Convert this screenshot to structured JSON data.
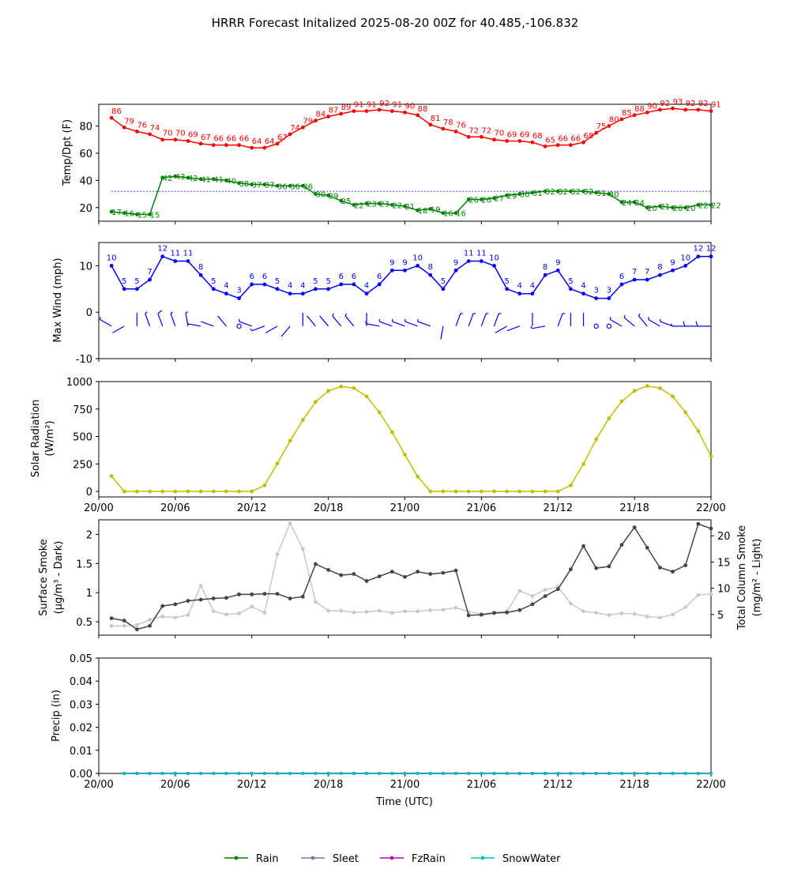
{
  "title": "HRRR Forecast Initalized 2025-08-20 00Z for 40.485,-106.832",
  "x_axis": {
    "label": "Time (UTC)",
    "ticks": [
      "20/00",
      "20/06",
      "20/12",
      "20/18",
      "21/00",
      "21/06",
      "21/12",
      "21/18",
      "22/00"
    ],
    "tick_hours": [
      0,
      6,
      12,
      18,
      24,
      30,
      36,
      42,
      48
    ],
    "range_hours": [
      0,
      48
    ]
  },
  "colors": {
    "temp": "#ff0000",
    "dewpoint": "#008000",
    "freezing_line": "#0000ff",
    "wind": "#0000ff",
    "solar": "#bfbf00",
    "smoke_dark": "#444444",
    "smoke_light": "#c8c8c8",
    "rain": "#008000",
    "sleet": "#8c6ea0",
    "fzrain": "#c000c0",
    "snowwater": "#00bfbf"
  },
  "chart_data": [
    {
      "type": "line",
      "panel": "temperature",
      "ylabel": "Temp/Dpt (F)",
      "ylim": [
        10,
        96
      ],
      "yticks": [
        20,
        40,
        60,
        80
      ],
      "reference_line": 32,
      "x": [
        1,
        2,
        3,
        4,
        5,
        6,
        7,
        8,
        9,
        10,
        11,
        12,
        13,
        14,
        15,
        16,
        17,
        18,
        19,
        20,
        21,
        22,
        23,
        24,
        25,
        26,
        27,
        28,
        29,
        30,
        31,
        32,
        33,
        34,
        35,
        36,
        37,
        38,
        39,
        40,
        41,
        42,
        43,
        44,
        45,
        46,
        47,
        48
      ],
      "series": [
        {
          "key": "temp",
          "values": [
            86,
            79,
            76,
            74,
            70,
            70,
            69,
            67,
            66,
            66,
            66,
            64,
            64,
            67,
            74,
            79,
            84,
            87,
            89,
            91,
            91,
            92,
            91,
            90,
            88,
            81,
            78,
            76,
            72,
            72,
            70,
            69,
            69,
            68,
            65,
            66,
            66,
            68,
            75,
            80,
            85,
            88,
            90,
            92,
            93,
            92,
            92,
            91
          ]
        },
        {
          "key": "dewpoint",
          "values": [
            17,
            16,
            15,
            15,
            42,
            43,
            42,
            41,
            41,
            40,
            38,
            37,
            37,
            36,
            36,
            36,
            30,
            29,
            25,
            22,
            23,
            23,
            22,
            21,
            18,
            19,
            16,
            16,
            26,
            26,
            27,
            29,
            30,
            31,
            32,
            32,
            32,
            32,
            31,
            30,
            24,
            24,
            20,
            21,
            20,
            20,
            22,
            22
          ]
        }
      ]
    },
    {
      "type": "line",
      "panel": "wind",
      "ylabel": "Max Wind (mph)",
      "ylim": [
        -10,
        15
      ],
      "yticks": [
        -10,
        0,
        10
      ],
      "x": [
        1,
        2,
        3,
        4,
        5,
        6,
        7,
        8,
        9,
        10,
        11,
        12,
        13,
        14,
        15,
        16,
        17,
        18,
        19,
        20,
        21,
        22,
        23,
        24,
        25,
        26,
        27,
        28,
        29,
        30,
        31,
        32,
        33,
        34,
        35,
        36,
        37,
        38,
        39,
        40,
        41,
        42,
        43,
        44,
        45,
        46,
        47,
        48
      ],
      "series": [
        {
          "key": "wind",
          "values": [
            10,
            5,
            5,
            7,
            12,
            11,
            11,
            8,
            5,
            4,
            3,
            6,
            6,
            5,
            4,
            4,
            5,
            5,
            6,
            6,
            4,
            6,
            9,
            9,
            10,
            8,
            5,
            9,
            11,
            11,
            10,
            5,
            4,
            4,
            8,
            9,
            5,
            4,
            3,
            3,
            6,
            7,
            7,
            8,
            9,
            10,
            12,
            12
          ]
        }
      ],
      "barb_directions_deg": [
        300,
        240,
        0,
        340,
        340,
        340,
        350,
        280,
        290,
        320,
        250,
        290,
        250,
        240,
        220,
        0,
        320,
        320,
        320,
        320,
        0,
        280,
        290,
        290,
        290,
        290,
        190,
        20,
        20,
        20,
        20,
        240,
        250,
        0,
        260,
        20,
        0,
        0,
        0,
        320,
        300,
        310,
        320,
        300,
        290,
        270,
        270,
        270
      ]
    },
    {
      "type": "line",
      "panel": "solar",
      "ylabel": "Solar Radiation",
      "ylabel_unit": "(W/m²)",
      "ylim": [
        -50,
        1000
      ],
      "yticks": [
        0,
        250,
        500,
        750,
        1000
      ],
      "x": [
        1,
        2,
        3,
        4,
        5,
        6,
        7,
        8,
        9,
        10,
        11,
        12,
        13,
        14,
        15,
        16,
        17,
        18,
        19,
        20,
        21,
        22,
        23,
        24,
        25,
        26,
        27,
        28,
        29,
        30,
        31,
        32,
        33,
        34,
        35,
        36,
        37,
        38,
        39,
        40,
        41,
        42,
        43,
        44,
        45,
        46,
        47,
        48
      ],
      "series": [
        {
          "key": "solar",
          "values": [
            140,
            0,
            0,
            0,
            0,
            0,
            0,
            0,
            0,
            0,
            0,
            0,
            55,
            255,
            460,
            650,
            815,
            915,
            955,
            940,
            865,
            720,
            540,
            335,
            135,
            0,
            0,
            0,
            0,
            0,
            0,
            0,
            0,
            0,
            0,
            0,
            55,
            250,
            475,
            665,
            820,
            915,
            960,
            940,
            865,
            720,
            550,
            320
          ]
        }
      ]
    },
    {
      "type": "line",
      "panel": "smoke",
      "ylabel": "Surface Smoke",
      "ylabel_unit": "(μg/m³ - Dark)",
      "ylabel_right": "Total Column Smoke",
      "ylabel_right_unit": "(mg/m² - Light)",
      "ylim": [
        0.27,
        2.25
      ],
      "yticks": [
        0.5,
        1.0,
        1.5,
        2.0
      ],
      "ylim_right": [
        1.05,
        23.05
      ],
      "yticks_right": [
        5,
        10,
        15,
        20
      ],
      "x": [
        1,
        2,
        3,
        4,
        5,
        6,
        7,
        8,
        9,
        10,
        11,
        12,
        13,
        14,
        15,
        16,
        17,
        18,
        19,
        20,
        21,
        22,
        23,
        24,
        25,
        26,
        27,
        28,
        29,
        30,
        31,
        32,
        33,
        34,
        35,
        36,
        37,
        38,
        39,
        40,
        41,
        42,
        43,
        44,
        45,
        46,
        47,
        48
      ],
      "series": [
        {
          "key": "smoke_dark",
          "axis": "left",
          "values": [
            0.56,
            0.52,
            0.37,
            0.43,
            0.77,
            0.8,
            0.86,
            0.88,
            0.9,
            0.91,
            0.97,
            0.97,
            0.98,
            0.98,
            0.9,
            0.93,
            1.49,
            1.39,
            1.3,
            1.32,
            1.2,
            1.28,
            1.36,
            1.27,
            1.36,
            1.32,
            1.34,
            1.38,
            0.61,
            0.62,
            0.65,
            0.66,
            0.7,
            0.8,
            0.94,
            1.06,
            1.4,
            1.8,
            1.42,
            1.45,
            1.82,
            2.12,
            1.77,
            1.43,
            1.36,
            1.47,
            2.18,
            2.1
          ]
        },
        {
          "key": "smoke_light",
          "axis": "right",
          "values": [
            2.8,
            2.8,
            3.0,
            4.0,
            4.6,
            4.4,
            4.9,
            10.5,
            5.6,
            5.0,
            5.2,
            6.5,
            5.3,
            16.5,
            22.4,
            17.5,
            7.4,
            5.7,
            5.7,
            5.4,
            5.5,
            5.7,
            5.3,
            5.6,
            5.6,
            5.8,
            5.9,
            6.3,
            5.5,
            5.1,
            5.4,
            5.6,
            9.5,
            8.5,
            9.7,
            10.3,
            7.1,
            5.6,
            5.3,
            4.9,
            5.2,
            5.1,
            4.6,
            4.4,
            5.0,
            6.4,
            8.7,
            8.9
          ]
        }
      ]
    },
    {
      "type": "line",
      "panel": "precip",
      "ylabel": "Precip (in)",
      "ylim": [
        0,
        0.05
      ],
      "yticks": [
        "0.00",
        "0.01",
        "0.02",
        "0.03",
        "0.04",
        "0.05"
      ],
      "x": [
        2,
        3,
        4,
        5,
        6,
        7,
        8,
        9,
        10,
        11,
        12,
        13,
        14,
        15,
        16,
        17,
        18,
        19,
        20,
        21,
        22,
        23,
        24,
        25,
        26,
        27,
        28,
        29,
        30,
        31,
        32,
        33,
        34,
        35,
        36,
        37,
        38,
        39,
        40,
        41,
        42,
        43,
        44,
        45,
        46,
        47,
        48
      ],
      "series": [
        {
          "key": "rain",
          "name": "Rain",
          "values": [
            0,
            0,
            0,
            0,
            0,
            0,
            0,
            0,
            0,
            0,
            0,
            0,
            0,
            0,
            0,
            0,
            0,
            0,
            0,
            0,
            0,
            0,
            0,
            0,
            0,
            0,
            0,
            0,
            0,
            0,
            0,
            0,
            0,
            0,
            0,
            0,
            0,
            0,
            0,
            0,
            0,
            0,
            0,
            0,
            0,
            0,
            0
          ]
        },
        {
          "key": "sleet",
          "name": "Sleet",
          "values": [
            0,
            0,
            0,
            0,
            0,
            0,
            0,
            0,
            0,
            0,
            0,
            0,
            0,
            0,
            0,
            0,
            0,
            0,
            0,
            0,
            0,
            0,
            0,
            0,
            0,
            0,
            0,
            0,
            0,
            0,
            0,
            0,
            0,
            0,
            0,
            0,
            0,
            0,
            0,
            0,
            0,
            0,
            0,
            0,
            0,
            0,
            0
          ]
        },
        {
          "key": "fzrain",
          "name": "FzRain",
          "values": [
            0,
            0,
            0,
            0,
            0,
            0,
            0,
            0,
            0,
            0,
            0,
            0,
            0,
            0,
            0,
            0,
            0,
            0,
            0,
            0,
            0,
            0,
            0,
            0,
            0,
            0,
            0,
            0,
            0,
            0,
            0,
            0,
            0,
            0,
            0,
            0,
            0,
            0,
            0,
            0,
            0,
            0,
            0,
            0,
            0,
            0,
            0
          ]
        },
        {
          "key": "snowwater",
          "name": "SnowWater",
          "values": [
            0,
            0,
            0,
            0,
            0,
            0,
            0,
            0,
            0,
            0,
            0,
            0,
            0,
            0,
            0,
            0,
            0,
            0,
            0,
            0,
            0,
            0,
            0,
            0,
            0,
            0,
            0,
            0,
            0,
            0,
            0,
            0,
            0,
            0,
            0,
            0,
            0,
            0,
            0,
            0,
            0,
            0,
            0,
            0,
            0,
            0,
            0
          ]
        }
      ]
    }
  ],
  "legend": {
    "placement": "bottom-center",
    "items": [
      {
        "key": "rain",
        "label": "Rain"
      },
      {
        "key": "sleet",
        "label": "Sleet"
      },
      {
        "key": "fzrain",
        "label": "FzRain"
      },
      {
        "key": "snowwater",
        "label": "SnowWater"
      }
    ]
  }
}
